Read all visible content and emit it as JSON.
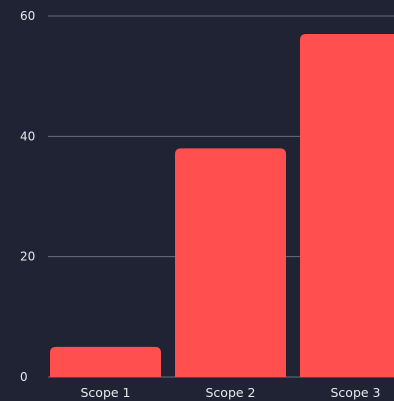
{
  "chart_data": {
    "type": "bar",
    "categories": [
      "Scope 1",
      "Scope 2",
      "Scope 3"
    ],
    "values": [
      5,
      38,
      57
    ],
    "yticks": [
      "0",
      "20",
      "40",
      "60"
    ],
    "ylim": [
      0,
      60
    ],
    "grid": true,
    "colors": {
      "background": "#1f2333",
      "bar": "#ff4f4f",
      "grid": "#6a6f80",
      "text": "#e8e8ee"
    }
  }
}
